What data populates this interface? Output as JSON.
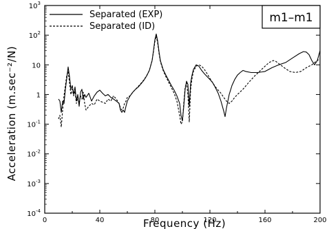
{
  "chart_data": {
    "type": "line",
    "xlabel": "Frequency (Hz)",
    "ylabel": "Acceleration (m.sec⁻²/N)",
    "xlim": [
      0,
      200
    ],
    "ylim_log10": [
      -4,
      3
    ],
    "y_scale": "log",
    "x_ticks": [
      "0",
      "40",
      "80",
      "120",
      "160",
      "200"
    ],
    "x_tick_values": [
      0,
      40,
      80,
      120,
      160,
      200
    ],
    "y_ticks": [
      {
        "base": "10",
        "exp": "-4",
        "value": 0.0001
      },
      {
        "base": "10",
        "exp": "-3",
        "value": 0.001
      },
      {
        "base": "10",
        "exp": "-2",
        "value": 0.01
      },
      {
        "base": "10",
        "exp": "-1",
        "value": 0.1
      },
      {
        "base": "1",
        "exp": "",
        "value": 1
      },
      {
        "base": "10",
        "exp": "",
        "value": 10
      },
      {
        "base": "10",
        "exp": "2",
        "value": 100
      },
      {
        "base": "10",
        "exp": "3",
        "value": 1000
      }
    ],
    "annotation": "m1–m1",
    "legend_position": "top-left",
    "grid": false,
    "series": [
      {
        "name": "Separated (EXP)",
        "style": "solid",
        "points": [
          [
            10,
            0.7
          ],
          [
            11,
            0.6
          ],
          [
            12,
            0.25
          ],
          [
            13,
            0.6
          ],
          [
            14,
            0.5
          ],
          [
            15,
            1.5
          ],
          [
            16,
            3.5
          ],
          [
            17,
            8.5
          ],
          [
            18,
            4
          ],
          [
            19,
            1.5
          ],
          [
            20,
            2
          ],
          [
            21,
            1
          ],
          [
            22,
            1.8
          ],
          [
            23,
            0.6
          ],
          [
            24,
            1
          ],
          [
            25,
            0.4
          ],
          [
            26,
            1.2
          ],
          [
            27,
            1.5
          ],
          [
            28,
            0.7
          ],
          [
            29,
            1
          ],
          [
            30,
            0.8
          ],
          [
            32,
            1.1
          ],
          [
            34,
            0.6
          ],
          [
            36,
            0.9
          ],
          [
            38,
            1.2
          ],
          [
            40,
            1.4
          ],
          [
            42,
            1.1
          ],
          [
            44,
            0.9
          ],
          [
            46,
            1
          ],
          [
            48,
            0.8
          ],
          [
            50,
            0.7
          ],
          [
            52,
            0.6
          ],
          [
            54,
            0.5
          ],
          [
            55,
            0.3
          ],
          [
            56,
            0.25
          ],
          [
            57,
            0.3
          ],
          [
            58,
            0.25
          ],
          [
            59,
            0.4
          ],
          [
            60,
            0.6
          ],
          [
            62,
            0.9
          ],
          [
            64,
            1.2
          ],
          [
            66,
            1.5
          ],
          [
            68,
            1.8
          ],
          [
            70,
            2.3
          ],
          [
            72,
            3
          ],
          [
            74,
            4.2
          ],
          [
            76,
            6.5
          ],
          [
            78,
            14
          ],
          [
            79,
            30
          ],
          [
            80,
            70
          ],
          [
            81,
            110
          ],
          [
            82,
            65
          ],
          [
            83,
            28
          ],
          [
            84,
            14
          ],
          [
            86,
            7
          ],
          [
            88,
            4.5
          ],
          [
            90,
            3
          ],
          [
            92,
            2
          ],
          [
            94,
            1.4
          ],
          [
            96,
            0.9
          ],
          [
            98,
            0.5
          ],
          [
            99,
            0.2
          ],
          [
            100,
            0.13
          ],
          [
            101,
            0.4
          ],
          [
            102,
            1.5
          ],
          [
            103,
            2.8
          ],
          [
            104,
            2.2
          ],
          [
            105,
            0.4
          ],
          [
            106,
            2.5
          ],
          [
            107,
            4.5
          ],
          [
            108,
            7
          ],
          [
            110,
            10
          ],
          [
            112,
            9
          ],
          [
            114,
            6.5
          ],
          [
            116,
            5
          ],
          [
            118,
            4
          ],
          [
            120,
            3.2
          ],
          [
            122,
            2.5
          ],
          [
            124,
            1.7
          ],
          [
            126,
            1.1
          ],
          [
            128,
            0.6
          ],
          [
            130,
            0.28
          ],
          [
            131,
            0.18
          ],
          [
            132,
            0.35
          ],
          [
            134,
            1
          ],
          [
            136,
            2
          ],
          [
            138,
            3.2
          ],
          [
            140,
            4.5
          ],
          [
            142,
            5.5
          ],
          [
            144,
            6.5
          ],
          [
            146,
            6
          ],
          [
            150,
            5.5
          ],
          [
            155,
            5.5
          ],
          [
            160,
            6
          ],
          [
            165,
            8
          ],
          [
            170,
            10
          ],
          [
            175,
            12
          ],
          [
            180,
            17
          ],
          [
            185,
            24
          ],
          [
            188,
            28
          ],
          [
            190,
            27
          ],
          [
            192,
            22
          ],
          [
            194,
            14
          ],
          [
            196,
            10
          ],
          [
            198,
            14
          ],
          [
            200,
            30
          ]
        ]
      },
      {
        "name": "Separated (ID)",
        "style": "dashed",
        "points": [
          [
            10,
            0.15
          ],
          [
            11,
            0.2
          ],
          [
            12,
            0.08
          ],
          [
            13,
            0.3
          ],
          [
            14,
            0.9
          ],
          [
            15,
            2
          ],
          [
            16,
            4.5
          ],
          [
            17,
            6
          ],
          [
            18,
            2.5
          ],
          [
            19,
            1
          ],
          [
            20,
            1.5
          ],
          [
            21,
            0.9
          ],
          [
            22,
            1.3
          ],
          [
            23,
            0.5
          ],
          [
            24,
            0.8
          ],
          [
            25,
            0.5
          ],
          [
            26,
            0.9
          ],
          [
            27,
            0.7
          ],
          [
            28,
            1.2
          ],
          [
            29,
            0.5
          ],
          [
            30,
            0.3
          ],
          [
            32,
            0.4
          ],
          [
            34,
            0.5
          ],
          [
            36,
            0.45
          ],
          [
            38,
            0.7
          ],
          [
            40,
            0.6
          ],
          [
            42,
            0.55
          ],
          [
            44,
            0.5
          ],
          [
            46,
            0.7
          ],
          [
            48,
            0.6
          ],
          [
            50,
            0.9
          ],
          [
            52,
            0.7
          ],
          [
            54,
            0.5
          ],
          [
            55,
            0.35
          ],
          [
            56,
            0.3
          ],
          [
            57,
            0.35
          ],
          [
            58,
            0.5
          ],
          [
            59,
            0.6
          ],
          [
            60,
            0.8
          ],
          [
            62,
            0.9
          ],
          [
            64,
            1.2
          ],
          [
            66,
            1.5
          ],
          [
            68,
            1.9
          ],
          [
            70,
            2.4
          ],
          [
            72,
            3.1
          ],
          [
            74,
            4.3
          ],
          [
            76,
            6.5
          ],
          [
            78,
            14
          ],
          [
            79,
            28
          ],
          [
            80,
            60
          ],
          [
            81,
            95
          ],
          [
            82,
            55
          ],
          [
            83,
            25
          ],
          [
            84,
            13
          ],
          [
            86,
            6.5
          ],
          [
            88,
            4
          ],
          [
            90,
            2.6
          ],
          [
            92,
            1.7
          ],
          [
            94,
            1.1
          ],
          [
            96,
            0.6
          ],
          [
            98,
            0.2
          ],
          [
            99,
            0.1
          ],
          [
            100,
            0.12
          ],
          [
            101,
            0.5
          ],
          [
            102,
            1.8
          ],
          [
            103,
            2.5
          ],
          [
            104,
            1
          ],
          [
            105,
            0.12
          ],
          [
            106,
            1.5
          ],
          [
            107,
            3.5
          ],
          [
            108,
            6
          ],
          [
            110,
            9
          ],
          [
            112,
            10
          ],
          [
            114,
            9
          ],
          [
            116,
            7
          ],
          [
            118,
            5
          ],
          [
            120,
            3.5
          ],
          [
            122,
            2.5
          ],
          [
            124,
            1.8
          ],
          [
            126,
            1.4
          ],
          [
            128,
            1.1
          ],
          [
            130,
            0.8
          ],
          [
            132,
            0.6
          ],
          [
            134,
            0.5
          ],
          [
            136,
            0.6
          ],
          [
            138,
            0.8
          ],
          [
            140,
            1
          ],
          [
            144,
            1.5
          ],
          [
            148,
            2.5
          ],
          [
            152,
            4
          ],
          [
            156,
            6
          ],
          [
            160,
            9
          ],
          [
            163,
            12
          ],
          [
            166,
            14
          ],
          [
            168,
            13
          ],
          [
            170,
            11
          ],
          [
            174,
            8
          ],
          [
            178,
            6
          ],
          [
            182,
            5.5
          ],
          [
            186,
            6
          ],
          [
            190,
            8
          ],
          [
            194,
            10
          ],
          [
            196,
            12
          ],
          [
            198,
            14
          ],
          [
            200,
            16
          ]
        ]
      }
    ]
  }
}
